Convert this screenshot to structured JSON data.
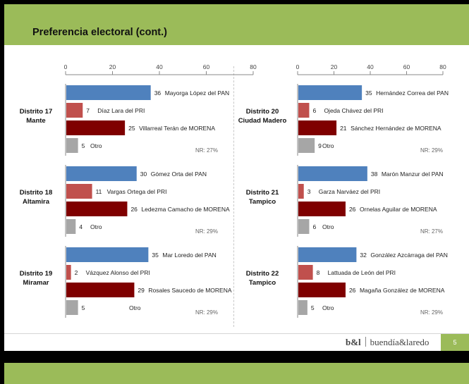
{
  "slide": {
    "title": "Preferencia electoral (cont.)",
    "brand_short": "b&l",
    "brand_name": "buendía&laredo",
    "page_number": "5"
  },
  "chart_data": [
    {
      "type": "bar",
      "district": [
        "Distrito 17",
        "Mante"
      ],
      "xlim": [
        0,
        80
      ],
      "xticks": [
        0,
        20,
        40,
        60,
        80
      ],
      "categories": [
        "Mayorga López del PAN",
        "Díaz Lara del PRI",
        "Villarreal Terán de MORENA",
        "Otro"
      ],
      "values": [
        36,
        7,
        25,
        5
      ],
      "nr": "NR: 27%"
    },
    {
      "type": "bar",
      "district": [
        "Distrito 18",
        "Altamira"
      ],
      "xlim": [
        0,
        80
      ],
      "xticks": [
        0,
        20,
        40,
        60,
        80
      ],
      "categories": [
        "Gómez Orta del PAN",
        "Vargas Ortega del PRI",
        "Ledezma Camacho de MORENA",
        "Otro"
      ],
      "values": [
        30,
        11,
        26,
        4
      ],
      "nr": "NR: 29%"
    },
    {
      "type": "bar",
      "district": [
        "Distrito 19",
        "Miramar"
      ],
      "xlim": [
        0,
        80
      ],
      "xticks": [
        0,
        20,
        40,
        60,
        80
      ],
      "categories": [
        "Mar Loredo del PAN",
        "Vázquez Alonso del PRI",
        "Rosales Saucedo de MORENA",
        "Otro"
      ],
      "values": [
        35,
        2,
        29,
        5
      ],
      "nr": "NR: 29%"
    },
    {
      "type": "bar",
      "district": [
        "Distrito 20",
        "Ciudad Madero"
      ],
      "xlim": [
        0,
        80
      ],
      "xticks": [
        0,
        20,
        40,
        60,
        80
      ],
      "categories": [
        "Hernández Correa del PAN",
        "Ojeda Chávez del PRI",
        "Sánchez Hernández de MORENA",
        "Otro"
      ],
      "values": [
        35,
        6,
        21,
        9
      ],
      "nr": "NR: 29%"
    },
    {
      "type": "bar",
      "district": [
        "Distrito 21",
        "Tampico"
      ],
      "xlim": [
        0,
        80
      ],
      "xticks": [
        0,
        20,
        40,
        60,
        80
      ],
      "categories": [
        "Marón Manzur del PAN",
        "Garza Narváez del PRI",
        "Ornelas Aguilar de MORENA",
        "Otro"
      ],
      "values": [
        38,
        3,
        26,
        6
      ],
      "nr": "NR: 27%"
    },
    {
      "type": "bar",
      "district": [
        "Distrito 22",
        "Tampico"
      ],
      "xlim": [
        0,
        80
      ],
      "xticks": [
        0,
        20,
        40,
        60,
        80
      ],
      "categories": [
        "González Azcárraga del PAN",
        "Lattuada de León del PRI",
        "Magaña González de MORENA",
        "Otro"
      ],
      "values": [
        32,
        8,
        26,
        5
      ],
      "nr": "NR: 29%"
    }
  ],
  "colors": {
    "pan": "#4f81bd",
    "pri": "#c0504d",
    "morena": "#7f0000",
    "otro": "#a6a6a6",
    "accent": "#9bbb59"
  }
}
